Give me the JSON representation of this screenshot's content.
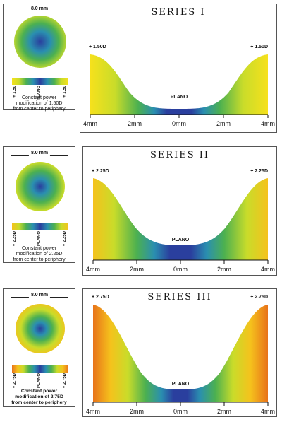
{
  "series": [
    {
      "title": "SERIES I",
      "diameter": "8.0 mm",
      "edge_power_label": "+ 1.50D",
      "plano_label": "PLANO",
      "bar_labels": [
        "+ 1.50",
        "PLANO",
        "+ 1.50"
      ],
      "description": [
        "Constant power",
        "modification of 1.50D",
        "from center to periphery"
      ],
      "axis_labels": [
        "4mm",
        "2mm",
        "0mm",
        "2mm",
        "4mm"
      ],
      "edge_color": "#f6e11c",
      "colors": [
        "#2a3f9e",
        "#2a8fb0",
        "#4cb050",
        "#c9dc2a",
        "#f6e11c"
      ]
    },
    {
      "title": "SERIES II",
      "diameter": "8.0 mm",
      "edge_power_label": "+ 2.25D",
      "plano_label": "PLANO",
      "bar_labels": [
        "+ 2.25D",
        "PLANO",
        "+ 2.25D"
      ],
      "description": [
        "Constant power",
        "modification of 2.25D",
        "from center to periphery"
      ],
      "axis_labels": [
        "4mm",
        "2mm",
        "0mm",
        "2mm",
        "4mm"
      ],
      "edge_color": "#f5c21c",
      "colors": [
        "#2a3f9e",
        "#2a8fb0",
        "#4cb050",
        "#c9dc2a",
        "#f5c21c"
      ]
    },
    {
      "title": "SERIES III",
      "diameter": "8.0 mm",
      "edge_power_label": "+ 2.75D",
      "plano_label": "PLANO",
      "bar_labels": [
        "+ 2.75D",
        "PLANO",
        "+ 2.75D"
      ],
      "description": [
        "Constant power",
        "modification of 2.75D",
        "from center to periphery"
      ],
      "axis_labels": [
        "4mm",
        "2mm",
        "0mm",
        "2mm",
        "4mm"
      ],
      "edge_color": "#e8731a",
      "colors": [
        "#2a3f9e",
        "#2a8fb0",
        "#4cb050",
        "#c9dc2a",
        "#f5c21c",
        "#e8731a"
      ]
    }
  ]
}
